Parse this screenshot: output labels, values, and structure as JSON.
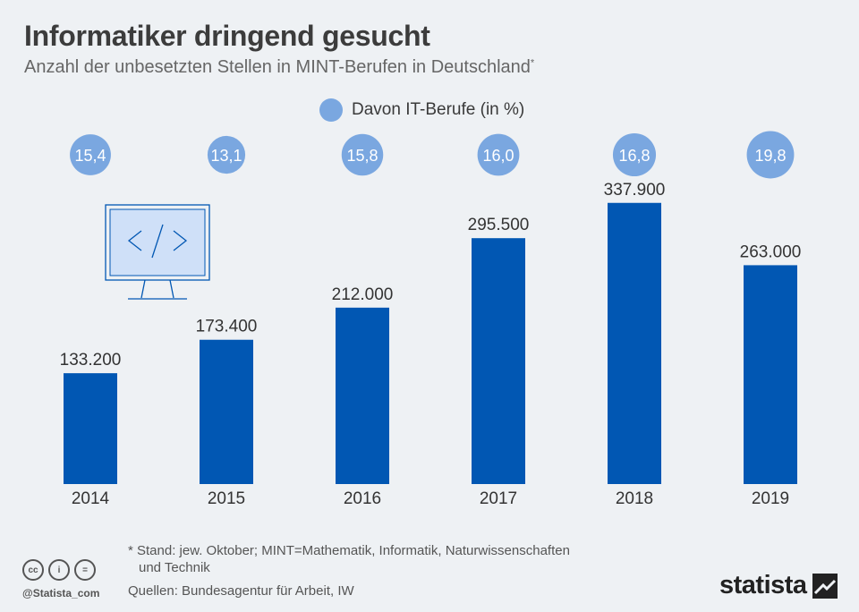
{
  "title": "Informatiker dringend gesucht",
  "subtitle": "Anzahl der unbesetzten Stellen in MINT-Berufen in Deutschland",
  "subtitle_mark": "*",
  "legend_label": "Davon IT-Berufe (in %)",
  "colors": {
    "bar": "#0157b3",
    "bubble": "#7aa7e0",
    "background": "#eef1f4",
    "icon_fill": "#cfe0f8",
    "icon_stroke": "#0157b3"
  },
  "chart_data": {
    "type": "bar",
    "categories": [
      "2014",
      "2015",
      "2016",
      "2017",
      "2018",
      "2019"
    ],
    "values": [
      133200,
      173400,
      212000,
      295500,
      337900,
      263000
    ],
    "value_labels": [
      "133.200",
      "173.400",
      "212.000",
      "295.500",
      "337.900",
      "263.000"
    ],
    "it_share": [
      15.4,
      13.1,
      15.8,
      16.0,
      16.8,
      19.8
    ],
    "it_share_labels": [
      "15,4",
      "13,1",
      "15,8",
      "16,0",
      "16,8",
      "19,8"
    ],
    "ylim": [
      0,
      400000
    ],
    "grid": false,
    "legend": "top-center"
  },
  "decoration": {
    "icon": "code-monitor-icon"
  },
  "footnote_line1": "* Stand: jew. Oktober; MINT=Mathematik, Informatik, Naturwissenschaften",
  "footnote_line2": "und Technik",
  "sources": "Quellen: Bundesagentur für Arbeit, IW",
  "handle": "@Statista_com",
  "cc_icons": [
    "cc",
    "i",
    "="
  ],
  "brand": "statista"
}
